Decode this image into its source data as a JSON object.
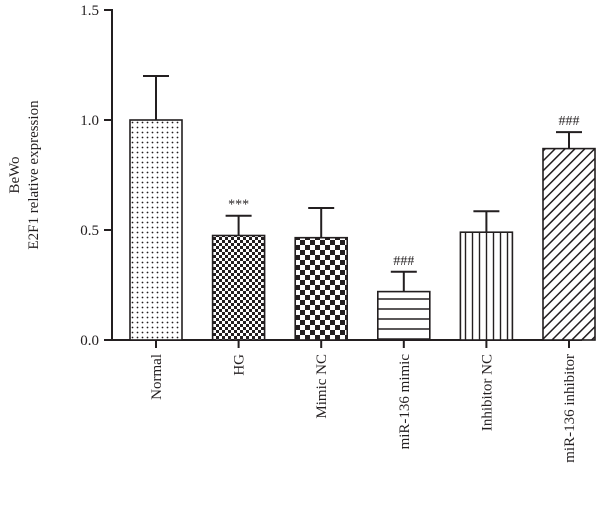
{
  "chart_data": {
    "type": "bar",
    "ylabel_lines": [
      "BeWo",
      "E2F1 relative expression"
    ],
    "ylim": [
      0,
      1.5
    ],
    "yticks": [
      "0.0",
      "0.5",
      "1.0",
      "1.5"
    ],
    "ytick_values": [
      0,
      0.5,
      1.0,
      1.5
    ],
    "categories": [
      "Normal",
      "HG",
      "Mimic NC",
      "miR-136 mimic",
      "Inhibitor NC",
      "miR-136 inhibitor"
    ],
    "values": [
      1.0,
      0.475,
      0.465,
      0.22,
      0.49,
      0.87
    ],
    "errors": [
      0.2,
      0.09,
      0.135,
      0.09,
      0.095,
      0.075
    ],
    "annotations": [
      "",
      "***",
      "",
      "###",
      "",
      "###"
    ],
    "patterns": [
      "dots",
      "checker-small",
      "checker-large",
      "horizontal-lines",
      "vertical-lines",
      "diagonal-lines"
    ],
    "grid": false,
    "colors": {
      "ink": "#231f20",
      "fill": "#ffffff"
    }
  }
}
